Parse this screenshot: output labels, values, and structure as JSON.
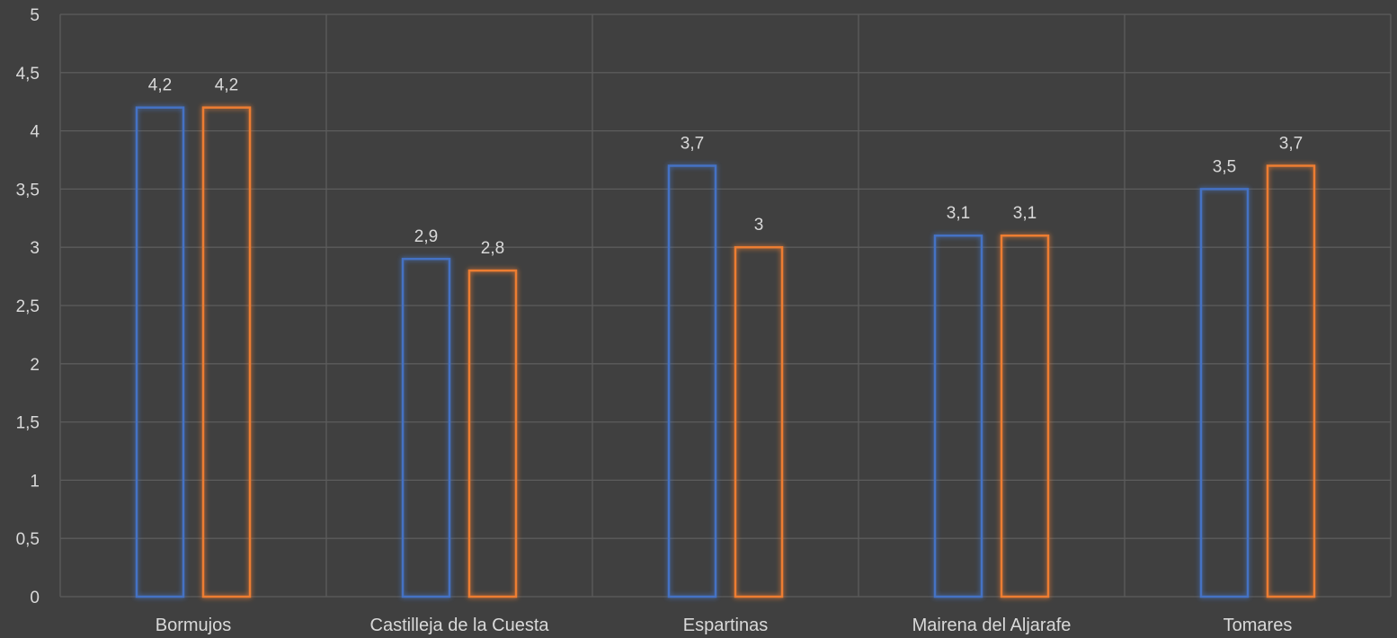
{
  "chart_data": {
    "type": "bar",
    "title": "",
    "xlabel": "",
    "ylabel": "",
    "categories": [
      "Bormujos",
      "Castilleja de la Cuesta",
      "Espartinas",
      "Mairena del Aljarafe",
      "Tomares"
    ],
    "series": [
      {
        "color": "#4472c4",
        "values": [
          4.2,
          2.9,
          3.7,
          3.1,
          3.5
        ],
        "labels": [
          "4,2",
          "2,9",
          "3,7",
          "3,1",
          "3,5"
        ]
      },
      {
        "color": "#ed7d31",
        "values": [
          4.2,
          2.8,
          3.0,
          3.1,
          3.7
        ],
        "labels": [
          "4,2",
          "2,8",
          "3",
          "3,1",
          "3,7"
        ]
      }
    ],
    "ylim": [
      0,
      5
    ],
    "yticks": [
      0,
      0.5,
      1,
      1.5,
      2,
      2.5,
      3,
      3.5,
      4,
      4.5,
      5
    ],
    "ytick_labels": [
      "0",
      "0,5",
      "1",
      "1,5",
      "2",
      "2,5",
      "3",
      "3,5",
      "4",
      "4,5",
      "5"
    ],
    "grid": true,
    "vertical_grid": true,
    "bar_style": "outline-glow",
    "legend": "none",
    "background": "#404040"
  }
}
